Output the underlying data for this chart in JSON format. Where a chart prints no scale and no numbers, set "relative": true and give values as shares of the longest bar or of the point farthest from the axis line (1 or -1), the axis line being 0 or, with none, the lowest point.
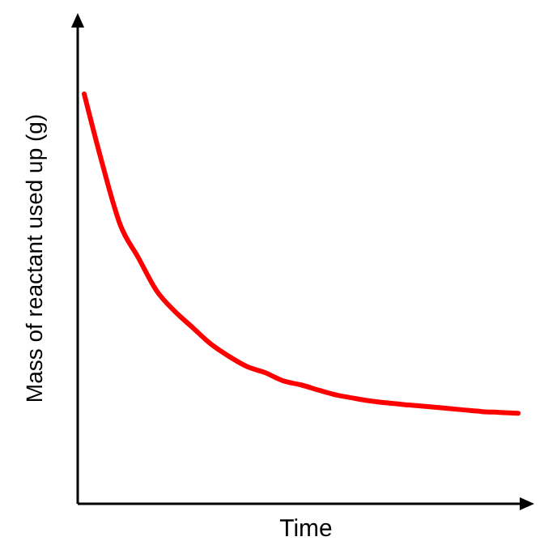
{
  "chart_data": {
    "type": "line",
    "xlabel": "Time",
    "ylabel": "Mass of reactant used up (g)",
    "relative": true,
    "categories": [
      null,
      null,
      null,
      null,
      null,
      null,
      null,
      null,
      null,
      null,
      null,
      null,
      null,
      null,
      null,
      null,
      null,
      null,
      null,
      null,
      null,
      null,
      null,
      null,
      null
    ],
    "values": [
      1.0,
      0.83,
      0.68,
      0.6,
      0.52,
      0.47,
      0.43,
      0.39,
      0.36,
      0.335,
      0.32,
      0.3,
      0.29,
      0.277,
      0.265,
      0.257,
      0.25,
      0.245,
      0.241,
      0.237,
      0.233,
      0.229,
      0.225,
      0.223,
      0.221
    ],
    "color": "#ff0000"
  }
}
